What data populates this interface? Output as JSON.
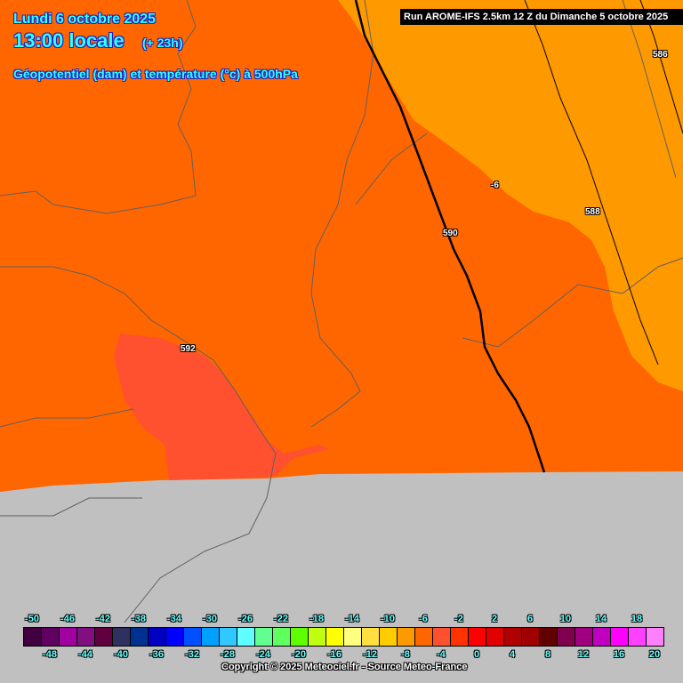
{
  "header": {
    "date": "Lundi 6 octobre 2025",
    "time": "13:00 locale",
    "lead": "(+ 23h)",
    "parameter": "Géopotentiel (dam) et température (°c) à 500hPa",
    "run": "Run AROME-IFS 2.5km 12 Z du Dimanche 5 octobre 2025"
  },
  "contour_labels": [
    {
      "text": "586",
      "kind": "geopotential"
    },
    {
      "text": "588",
      "kind": "geopotential"
    },
    {
      "text": "590",
      "kind": "geopotential"
    },
    {
      "text": "592",
      "kind": "geopotential"
    },
    {
      "text": "-6",
      "kind": "temperature"
    }
  ],
  "colors": {
    "temp_minus_8": "#ff9900",
    "temp_minus_6": "#ff6600",
    "temp_minus_4": "#ff5030",
    "no_data": "#c0c0c0",
    "borders": "#606060",
    "geopotential_line": "#000000"
  },
  "colorbar": {
    "values": [
      -50,
      -48,
      -46,
      -44,
      -42,
      -40,
      -38,
      -36,
      -34,
      -32,
      -30,
      -28,
      -26,
      -24,
      -22,
      -20,
      -18,
      -16,
      -14,
      -12,
      -10,
      -8,
      -6,
      -4,
      -2,
      0,
      2,
      4,
      6,
      8,
      10,
      12,
      14,
      16,
      18,
      20
    ],
    "colors": [
      "#400040",
      "#600060",
      "#a000a0",
      "#801080",
      "#600040",
      "#303060",
      "#003090",
      "#0000c0",
      "#0000ff",
      "#0050ff",
      "#00a0ff",
      "#30c8ff",
      "#60ffff",
      "#60ff90",
      "#60ff60",
      "#60ff00",
      "#c0ff10",
      "#ffff00",
      "#ffff80",
      "#ffe040",
      "#ffcc00",
      "#ff9900",
      "#ff6600",
      "#ff5030",
      "#ff3300",
      "#ff0000",
      "#e00000",
      "#b00000",
      "#a00000",
      "#600000",
      "#800050",
      "#a00080",
      "#c000c0",
      "#ff00ff",
      "#ff40ff",
      "#ff80ff"
    ],
    "top_labels": [
      "-50",
      "-46",
      "-42",
      "-38",
      "-34",
      "-30",
      "-26",
      "-22",
      "-18",
      "-14",
      "-10",
      "-6",
      "-2",
      "2",
      "6",
      "10",
      "14",
      "18"
    ],
    "bottom_labels": [
      "-48",
      "-44",
      "-40",
      "-36",
      "-32",
      "-28",
      "-24",
      "-20",
      "-16",
      "-12",
      "-8",
      "-4",
      "0",
      "4",
      "8",
      "12",
      "16",
      "20"
    ]
  },
  "copyright": "Copyright © 2025 Meteociel.fr - Source Meteo-France"
}
